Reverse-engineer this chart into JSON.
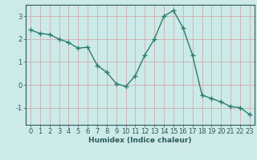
{
  "x": [
    0,
    1,
    2,
    3,
    4,
    5,
    6,
    7,
    8,
    9,
    10,
    11,
    12,
    13,
    14,
    15,
    16,
    17,
    18,
    19,
    20,
    21,
    22,
    23
  ],
  "y": [
    2.4,
    2.25,
    2.2,
    2.0,
    1.85,
    1.6,
    1.65,
    0.85,
    0.55,
    0.05,
    -0.07,
    0.4,
    1.3,
    2.0,
    3.0,
    3.25,
    2.5,
    1.3,
    -0.45,
    -0.6,
    -0.75,
    -0.95,
    -1.0,
    -1.3
  ],
  "line_color": "#2d7d6e",
  "marker": "+",
  "marker_size": 4,
  "bg_color": "#cceae8",
  "grid_color_major": "#d4a0a0",
  "grid_color_minor": "#d4a0a0",
  "xlabel": "Humidex (Indice chaleur)",
  "ylim": [
    -1.75,
    3.5
  ],
  "xlim": [
    -0.5,
    23.5
  ],
  "yticks": [
    -1,
    0,
    1,
    2,
    3
  ],
  "xticks": [
    0,
    1,
    2,
    3,
    4,
    5,
    6,
    7,
    8,
    9,
    10,
    11,
    12,
    13,
    14,
    15,
    16,
    17,
    18,
    19,
    20,
    21,
    22,
    23
  ],
  "xlabel_fontsize": 6.5,
  "tick_fontsize": 6,
  "line_width": 1.0,
  "spine_color": "#2d5a5a",
  "tick_color": "#2d5a5a",
  "label_color": "#2d5a5a"
}
